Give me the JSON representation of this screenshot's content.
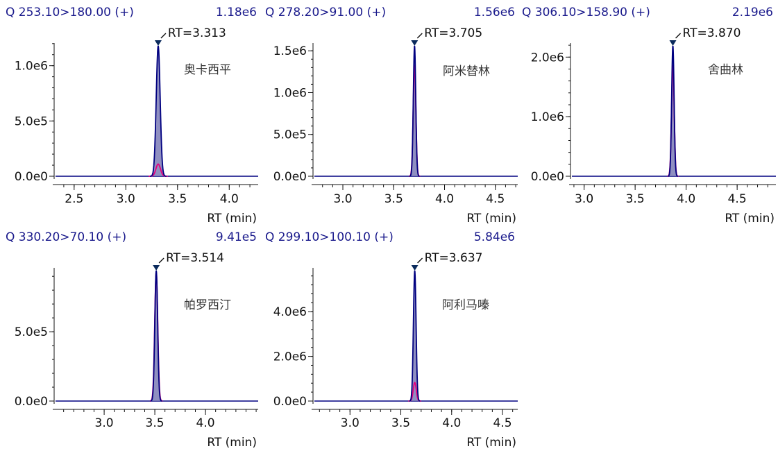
{
  "chart_data": [
    {
      "type": "line",
      "transition": "Q 253.10>180.00 (+)",
      "max_intensity": "1.18e6",
      "compound": "奥卡西平",
      "rt_label": "RT=3.313",
      "rt": 3.313,
      "xlabel": "RT (min)",
      "xlim": [
        2.32,
        4.28
      ],
      "ylim": [
        -40000,
        1230000
      ],
      "xticks": [
        2.5,
        3.0,
        3.5,
        4.0
      ],
      "xtick_labels": [
        "2.5",
        "3.0",
        "3.5",
        "4.0"
      ],
      "yticks": [
        0,
        500000,
        1000000
      ],
      "ytick_labels": [
        "0.0e0",
        "5.0e5",
        "1.0e6"
      ],
      "series": [
        {
          "role": "quantifier",
          "color": "#000080",
          "fill": "#7b7bb6",
          "peak_height": 1180000,
          "sigma": 0.019
        },
        {
          "role": "qualifier",
          "color": "#e6007e",
          "peak_height": 110000,
          "sigma": 0.022
        }
      ]
    },
    {
      "type": "line",
      "transition": "Q 278.20>91.00 (+)",
      "max_intensity": "1.56e6",
      "compound": "阿米替林",
      "rt_label": "RT=3.705",
      "rt": 3.705,
      "xlabel": "RT (min)",
      "xlim": [
        2.72,
        4.72
      ],
      "ylim": [
        -50000,
        1600000
      ],
      "xticks": [
        3.0,
        3.5,
        4.0,
        4.5
      ],
      "xtick_labels": [
        "3.0",
        "3.5",
        "4.0",
        "4.5"
      ],
      "yticks": [
        0,
        500000,
        1000000,
        1500000
      ],
      "ytick_labels": [
        "0.0e0",
        "5.0e5",
        "1.0e6",
        "1.5e6"
      ],
      "series": [
        {
          "role": "quantifier",
          "color": "#000080",
          "fill": "#7b7bb6",
          "peak_height": 1560000,
          "sigma": 0.012
        },
        {
          "role": "qualifier",
          "color": "#e6007e",
          "peak_height": 1330000,
          "sigma": 0.013
        }
      ]
    },
    {
      "type": "line",
      "transition": "Q 306.10>158.90 (+)",
      "max_intensity": "2.19e6",
      "compound": "舍曲林",
      "rt_label": "RT=3.870",
      "rt": 3.87,
      "xlabel": "RT (min)",
      "xlim": [
        2.88,
        4.88
      ],
      "ylim": [
        -70000,
        2270000
      ],
      "xticks": [
        3.0,
        3.5,
        4.0,
        4.5
      ],
      "xtick_labels": [
        "3.0",
        "3.5",
        "4.0",
        "4.5"
      ],
      "yticks": [
        0,
        1000000,
        2000000
      ],
      "ytick_labels": [
        "0.0e0",
        "1.0e6",
        "2.0e6"
      ],
      "series": [
        {
          "role": "quantifier",
          "color": "#000080",
          "fill": "#7b7bb6",
          "peak_height": 2190000,
          "sigma": 0.012
        },
        {
          "role": "qualifier",
          "color": "#e6007e",
          "peak_height": 1860000,
          "sigma": 0.013
        }
      ]
    },
    {
      "type": "line",
      "transition": "Q 330.20>70.10 (+)",
      "max_intensity": "9.41e5",
      "compound": "帕罗西汀",
      "rt_label": "RT=3.514",
      "rt": 3.514,
      "xlabel": "RT (min)",
      "xlim": [
        2.52,
        4.52
      ],
      "ylim": [
        -30000,
        990000
      ],
      "xticks": [
        3.0,
        3.5,
        4.0
      ],
      "xtick_labels": [
        "3.0",
        "3.5",
        "4.0"
      ],
      "yticks": [
        0,
        500000
      ],
      "ytick_labels": [
        "0.0e0",
        "5.0e5"
      ],
      "series": [
        {
          "role": "quantifier",
          "color": "#000080",
          "fill": "#7b7bb6",
          "peak_height": 941000,
          "sigma": 0.014
        },
        {
          "role": "qualifier",
          "color": "#e6007e",
          "peak_height": 930000,
          "sigma": 0.015
        }
      ]
    },
    {
      "type": "line",
      "transition": "Q 299.10>100.10 (+)",
      "max_intensity": "5.84e6",
      "compound": "阿利马嗪",
      "rt_label": "RT=3.637",
      "rt": 3.637,
      "xlabel": "RT (min)",
      "xlim": [
        2.65,
        4.65
      ],
      "ylim": [
        -180000,
        5900000
      ],
      "xticks": [
        3.0,
        3.5,
        4.0,
        4.5
      ],
      "xtick_labels": [
        "3.0",
        "3.5",
        "4.0",
        "4.5"
      ],
      "yticks": [
        0,
        2000000,
        4000000
      ],
      "ytick_labels": [
        "0.0e0",
        "2.0e6",
        "4.0e6"
      ],
      "series": [
        {
          "role": "quantifier",
          "color": "#000080",
          "fill": "#7b7bb6",
          "peak_height": 5840000,
          "sigma": 0.013
        },
        {
          "role": "qualifier",
          "color": "#e6007e",
          "peak_height": 830000,
          "sigma": 0.015
        }
      ]
    }
  ]
}
